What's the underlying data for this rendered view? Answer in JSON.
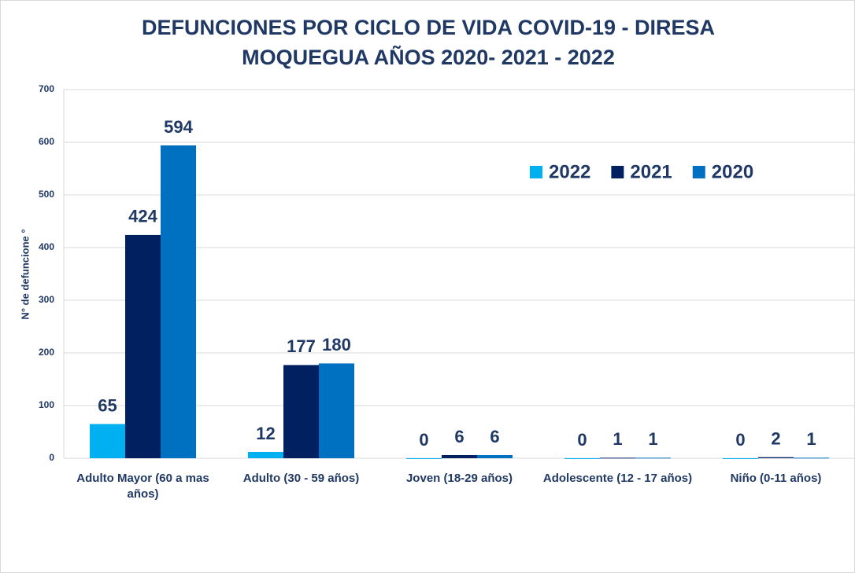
{
  "chart_data": {
    "type": "bar",
    "title": [
      "DEFUNCIONES  POR CICLO DE VIDA COVID-19 - DIRESA",
      "MOQUEGUA AÑOS 2020- 2021 - 2022"
    ],
    "y_label": "N° de defuncione °",
    "categories": [
      "Adulto Mayor (60 a mas años)",
      "Adulto (30 - 59 años)",
      "Joven (18-29 años)",
      "Adolescente (12 - 17 años)",
      "Niño (0-11 años)"
    ],
    "series": [
      {
        "name": "2022",
        "color": "#00b0f0",
        "values": [
          65,
          12,
          0,
          0,
          0
        ]
      },
      {
        "name": "2021",
        "color": "#002060",
        "values": [
          424,
          177,
          6,
          1,
          2
        ]
      },
      {
        "name": "2020",
        "color": "#0070c0",
        "values": [
          594,
          180,
          6,
          1,
          1
        ]
      }
    ],
    "ylim": [
      0,
      700
    ],
    "yticks": [
      0,
      100,
      200,
      300,
      400,
      500,
      600,
      700
    ],
    "grid": true,
    "legend": "upper right"
  }
}
